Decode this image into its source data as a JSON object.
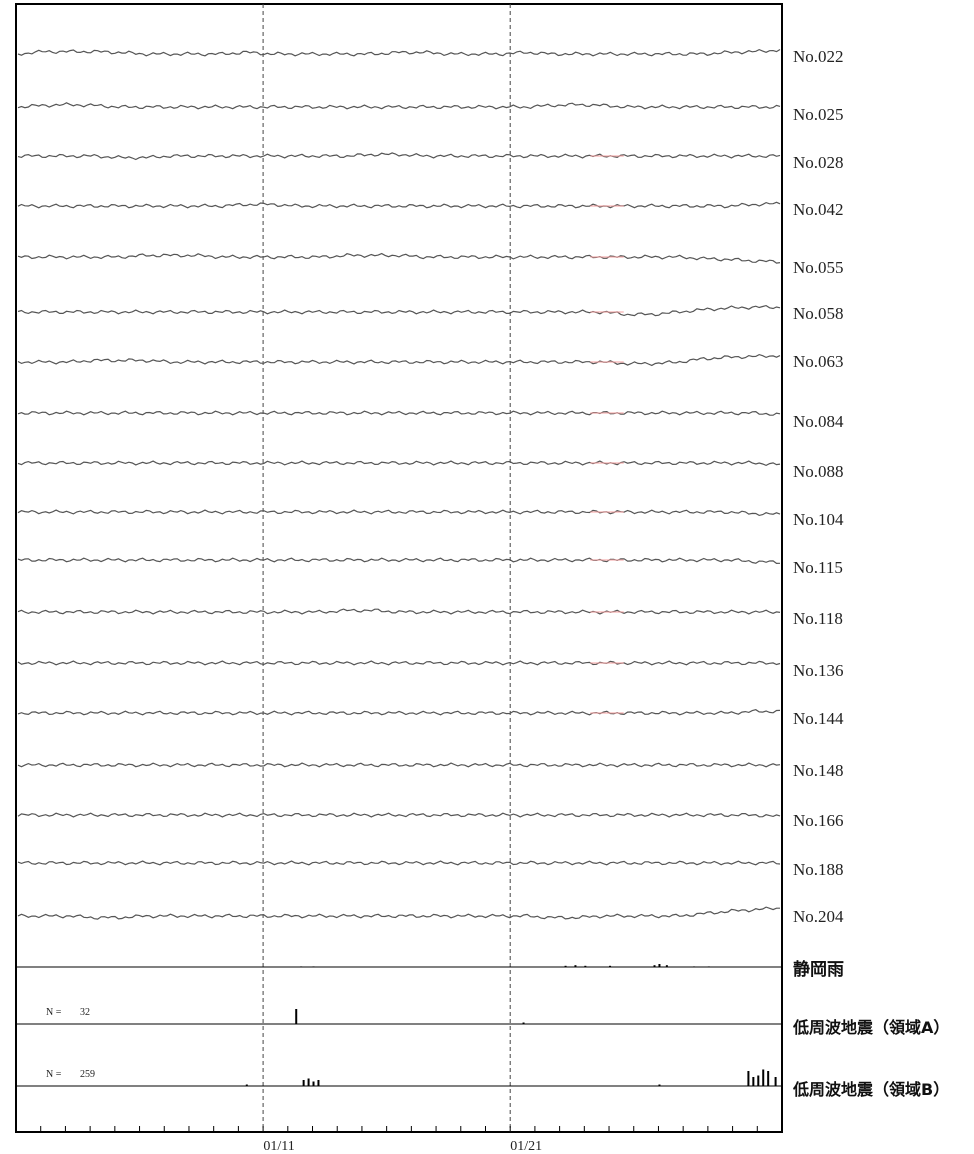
{
  "chart_data": {
    "type": "line",
    "x_axis": {
      "tick_labels": [
        "01/11",
        "01/21"
      ],
      "reference_lines": [
        "01/11",
        "01/21"
      ],
      "reference_line_style": "dashed",
      "days_shown": 31,
      "label_day_positions": [
        10,
        20
      ]
    },
    "grid": false,
    "legend": "none",
    "colors": {
      "trace": "#555555",
      "highlight": "#f4a0a0",
      "frame": "#000000",
      "event_bar": "#000000"
    },
    "series": [
      {
        "name": "No.022",
        "values": [
          0.0,
          0.3,
          0.3,
          0.3,
          0.2,
          0.0,
          0.0,
          0.0,
          0.0,
          0.2,
          0.0,
          0.0,
          0.0,
          0.0,
          0.0,
          0.2,
          0.2,
          0.0,
          0.0,
          0.0,
          0.2,
          0.0,
          0.0,
          0.0,
          0.0,
          0.0,
          0.0,
          0.0,
          0.2,
          0.3,
          0.5
        ]
      },
      {
        "name": "No.025",
        "values": [
          0.0,
          0.2,
          0.3,
          0.2,
          0.0,
          0.0,
          0.0,
          0.0,
          0.0,
          0.0,
          0.0,
          0.0,
          0.0,
          0.0,
          0.0,
          0.0,
          0.0,
          0.0,
          0.0,
          0.0,
          0.0,
          0.2,
          0.3,
          0.2,
          0.0,
          0.0,
          0.0,
          0.0,
          0.0,
          0.0,
          0.0
        ]
      },
      {
        "name": "No.028",
        "values": [
          0.0,
          0.0,
          0.0,
          0.0,
          -0.2,
          -0.2,
          0.0,
          0.0,
          0.0,
          0.0,
          0.0,
          0.0,
          0.0,
          0.0,
          0.2,
          0.2,
          0.0,
          0.0,
          0.0,
          0.0,
          0.0,
          0.0,
          0.0,
          0.0,
          0.0,
          0.0,
          0.0,
          0.0,
          0.0,
          0.0,
          0.0
        ]
      },
      {
        "name": "No.042",
        "values": [
          0.0,
          0.0,
          0.0,
          0.0,
          0.0,
          0.0,
          0.0,
          0.0,
          0.0,
          0.2,
          0.2,
          0.0,
          0.0,
          0.0,
          0.0,
          0.0,
          0.0,
          0.0,
          0.0,
          0.0,
          0.0,
          0.0,
          0.0,
          0.0,
          0.0,
          0.0,
          0.0,
          0.0,
          0.0,
          0.2,
          0.3
        ]
      },
      {
        "name": "No.055",
        "values": [
          0.0,
          0.0,
          0.0,
          0.0,
          0.0,
          0.2,
          0.2,
          0.2,
          0.0,
          0.0,
          0.0,
          0.0,
          0.0,
          0.2,
          0.2,
          0.2,
          0.0,
          0.0,
          0.0,
          0.0,
          0.0,
          0.0,
          0.0,
          0.0,
          0.0,
          0.0,
          0.0,
          -0.2,
          -0.3,
          -0.5,
          -0.6
        ]
      },
      {
        "name": "No.058",
        "values": [
          0.0,
          0.0,
          0.0,
          0.0,
          0.0,
          0.0,
          0.0,
          0.0,
          0.0,
          0.0,
          0.0,
          0.0,
          0.0,
          0.0,
          0.0,
          0.0,
          0.0,
          0.0,
          0.0,
          0.0,
          0.0,
          0.0,
          0.0,
          0.0,
          -0.3,
          -0.3,
          0.0,
          0.3,
          0.5,
          0.6,
          0.6
        ]
      },
      {
        "name": "No.063",
        "values": [
          0.0,
          0.0,
          0.0,
          0.2,
          0.2,
          0.2,
          0.0,
          0.0,
          0.0,
          0.0,
          0.0,
          0.0,
          0.0,
          0.0,
          0.0,
          0.0,
          0.0,
          0.0,
          0.0,
          0.0,
          0.0,
          0.0,
          0.0,
          0.0,
          -0.2,
          -0.2,
          0.0,
          0.4,
          0.6,
          0.7,
          0.8
        ]
      },
      {
        "name": "No.084",
        "values": [
          0.0,
          0.0,
          0.0,
          0.0,
          0.0,
          0.0,
          0.0,
          0.0,
          0.0,
          0.0,
          0.0,
          0.0,
          0.0,
          0.0,
          0.0,
          0.0,
          0.0,
          0.0,
          0.0,
          0.0,
          0.0,
          0.0,
          0.0,
          0.0,
          0.0,
          0.0,
          0.0,
          0.0,
          0.0,
          0.0,
          -0.2
        ]
      },
      {
        "name": "No.088",
        "values": [
          0.0,
          0.0,
          0.0,
          0.0,
          0.0,
          0.0,
          0.0,
          0.0,
          0.0,
          0.0,
          0.0,
          0.0,
          0.0,
          0.0,
          0.0,
          0.0,
          0.0,
          0.0,
          0.0,
          0.0,
          0.0,
          0.0,
          0.0,
          0.0,
          0.0,
          0.0,
          0.0,
          0.0,
          0.0,
          0.0,
          -0.2
        ]
      },
      {
        "name": "No.104",
        "values": [
          0.0,
          0.0,
          0.0,
          0.0,
          0.0,
          0.0,
          0.0,
          0.0,
          0.0,
          0.0,
          0.0,
          0.0,
          0.0,
          0.0,
          0.0,
          0.0,
          0.0,
          0.0,
          0.0,
          0.0,
          0.0,
          0.0,
          0.0,
          0.0,
          0.0,
          0.0,
          0.0,
          0.0,
          0.0,
          -0.2,
          -0.3
        ]
      },
      {
        "name": "No.115",
        "values": [
          0.0,
          0.0,
          0.0,
          0.0,
          0.0,
          0.0,
          0.0,
          0.0,
          0.0,
          0.0,
          0.0,
          0.0,
          0.0,
          0.0,
          0.0,
          0.0,
          0.0,
          0.0,
          0.0,
          0.0,
          0.0,
          0.0,
          0.0,
          0.0,
          0.0,
          0.0,
          0.0,
          0.0,
          0.0,
          -0.2,
          -0.3
        ]
      },
      {
        "name": "No.118",
        "values": [
          0.0,
          0.0,
          0.0,
          0.0,
          0.0,
          0.0,
          0.0,
          0.0,
          0.0,
          0.0,
          0.0,
          0.0,
          0.0,
          0.2,
          0.2,
          0.0,
          0.0,
          0.0,
          0.0,
          0.0,
          0.0,
          0.0,
          0.0,
          0.0,
          0.0,
          0.0,
          0.0,
          0.0,
          0.0,
          0.0,
          0.0
        ]
      },
      {
        "name": "No.136",
        "values": [
          0.0,
          0.0,
          0.0,
          0.0,
          0.0,
          0.0,
          0.0,
          0.0,
          0.0,
          0.0,
          0.0,
          0.0,
          0.0,
          0.0,
          0.0,
          0.0,
          0.0,
          0.0,
          0.0,
          0.0,
          0.0,
          0.0,
          0.0,
          0.0,
          0.0,
          0.0,
          0.0,
          0.0,
          0.0,
          0.0,
          0.0
        ]
      },
      {
        "name": "No.144",
        "values": [
          0.0,
          0.0,
          0.0,
          0.0,
          0.0,
          0.0,
          0.0,
          0.0,
          0.0,
          0.0,
          0.0,
          0.0,
          0.0,
          0.0,
          0.0,
          0.0,
          0.0,
          0.0,
          0.0,
          0.0,
          0.0,
          0.0,
          0.0,
          0.0,
          0.0,
          0.0,
          0.0,
          0.0,
          0.0,
          0.2,
          0.2
        ]
      },
      {
        "name": "No.148",
        "values": [
          0.0,
          0.0,
          0.0,
          0.0,
          0.0,
          0.0,
          0.0,
          0.0,
          0.0,
          0.0,
          0.0,
          0.0,
          0.0,
          0.0,
          0.0,
          0.0,
          0.0,
          0.0,
          0.0,
          0.0,
          0.0,
          0.0,
          0.0,
          0.0,
          0.0,
          0.0,
          0.0,
          0.0,
          0.0,
          0.0,
          0.0
        ]
      },
      {
        "name": "No.166",
        "values": [
          0.0,
          0.0,
          0.0,
          0.0,
          0.0,
          0.0,
          0.0,
          0.0,
          0.0,
          0.0,
          0.0,
          0.0,
          0.0,
          0.0,
          0.0,
          0.0,
          0.0,
          0.0,
          0.0,
          0.0,
          0.0,
          0.0,
          0.0,
          0.0,
          0.0,
          0.0,
          0.0,
          0.0,
          0.0,
          0.0,
          -0.2
        ]
      },
      {
        "name": "No.188",
        "values": [
          0.0,
          0.0,
          0.0,
          0.0,
          0.0,
          0.0,
          0.0,
          0.0,
          0.0,
          0.0,
          0.0,
          0.0,
          0.0,
          0.0,
          0.0,
          0.0,
          0.0,
          0.0,
          0.0,
          0.0,
          0.0,
          0.0,
          0.0,
          0.0,
          0.0,
          0.0,
          0.0,
          0.0,
          0.0,
          0.0,
          0.0
        ]
      },
      {
        "name": "No.204",
        "values": [
          0.0,
          0.0,
          0.0,
          -0.2,
          -0.2,
          0.0,
          0.0,
          0.0,
          0.0,
          0.0,
          0.0,
          0.0,
          0.0,
          0.0,
          0.0,
          0.0,
          0.0,
          0.0,
          0.0,
          0.0,
          0.0,
          -0.2,
          -0.2,
          0.0,
          0.0,
          0.0,
          0.0,
          0.3,
          0.6,
          0.8,
          1.0
        ]
      }
    ],
    "highlight_day_range": [
      23,
      25
    ],
    "rain": {
      "name": "静岡雨",
      "bars": [
        [
          11.5,
          0.1
        ],
        [
          12.0,
          0.1
        ],
        [
          22.2,
          0.2
        ],
        [
          22.6,
          0.3
        ],
        [
          23.0,
          0.2
        ],
        [
          24.0,
          0.2
        ],
        [
          25.8,
          0.3
        ],
        [
          26.0,
          0.5
        ],
        [
          26.3,
          0.3
        ],
        [
          27.4,
          0.1
        ],
        [
          28.0,
          0.1
        ]
      ]
    },
    "event_panels": [
      {
        "name": "低周波地震（領域A）",
        "count_label": "N =",
        "count": "32",
        "bars": [
          [
            11.3,
            1.0
          ],
          [
            20.5,
            0.1
          ]
        ]
      },
      {
        "name": "低周波地震（領域B）",
        "count_label": "N =",
        "count": "259",
        "bars": [
          [
            9.3,
            0.1
          ],
          [
            11.6,
            0.4
          ],
          [
            11.8,
            0.5
          ],
          [
            12.0,
            0.3
          ],
          [
            12.2,
            0.4
          ],
          [
            26.0,
            0.1
          ],
          [
            29.6,
            1.0
          ],
          [
            29.8,
            0.6
          ],
          [
            30.0,
            0.7
          ],
          [
            30.2,
            1.1
          ],
          [
            30.4,
            1.0
          ],
          [
            30.7,
            0.6
          ]
        ]
      }
    ]
  }
}
